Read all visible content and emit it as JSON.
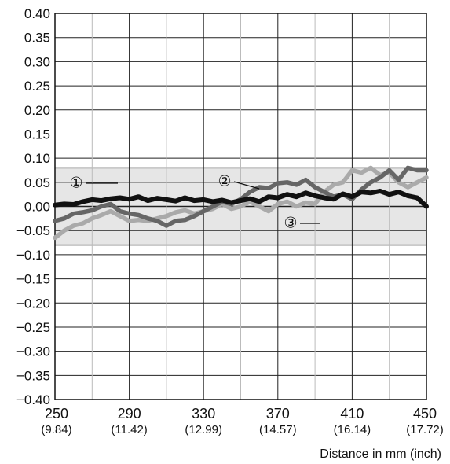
{
  "chart_data": {
    "type": "line",
    "xlabel": "Distance in mm (inch)",
    "ylabel": "",
    "xlim": [
      250,
      450
    ],
    "ylim": [
      -0.4,
      0.4
    ],
    "x_ticks": [
      {
        "value": 250,
        "label": "250",
        "sub": "(9.84)"
      },
      {
        "value": 290,
        "label": "290",
        "sub": "(11.42)"
      },
      {
        "value": 330,
        "label": "330",
        "sub": "(12.99)"
      },
      {
        "value": 370,
        "label": "370",
        "sub": "(14.57)"
      },
      {
        "value": 410,
        "label": "410",
        "sub": "(16.14)"
      },
      {
        "value": 450,
        "label": "450",
        "sub": "(17.72)"
      }
    ],
    "x_minor_ticks": [
      270,
      310,
      350,
      390,
      430
    ],
    "y_ticks": [
      {
        "value": 0.4,
        "label": "0.40"
      },
      {
        "value": 0.35,
        "label": "0.35"
      },
      {
        "value": 0.3,
        "label": "0.30"
      },
      {
        "value": 0.25,
        "label": "0.25"
      },
      {
        "value": 0.2,
        "label": "0.20"
      },
      {
        "value": 0.15,
        "label": "0.15"
      },
      {
        "value": 0.1,
        "label": "0.10"
      },
      {
        "value": 0.05,
        "label": "0.05"
      },
      {
        "value": 0.0,
        "label": "0.00"
      },
      {
        "value": -0.05,
        "label": "−0.05"
      },
      {
        "value": -0.1,
        "label": "−0.10"
      },
      {
        "value": -0.15,
        "label": "−0.15"
      },
      {
        "value": -0.2,
        "label": "−0.20"
      },
      {
        "value": -0.25,
        "label": "−0.25"
      },
      {
        "value": -0.3,
        "label": "−0.30"
      },
      {
        "value": -0.35,
        "label": "−0.35"
      },
      {
        "value": -0.4,
        "label": "−0.40"
      }
    ],
    "tolerance_band": {
      "from": -0.08,
      "to": 0.08,
      "color": "#e6e6e6",
      "edge_color": "#aaaaaa"
    },
    "grid": true,
    "series": [
      {
        "marker": "①",
        "color": "#111111",
        "x": [
          250,
          255,
          260,
          265,
          270,
          275,
          280,
          285,
          290,
          295,
          300,
          305,
          310,
          315,
          320,
          325,
          330,
          335,
          340,
          345,
          350,
          355,
          360,
          365,
          370,
          375,
          380,
          385,
          390,
          395,
          400,
          405,
          410,
          415,
          420,
          425,
          430,
          435,
          440,
          445,
          450
        ],
        "values": [
          0.003,
          0.005,
          0.004,
          0.01,
          0.014,
          0.012,
          0.016,
          0.018,
          0.015,
          0.02,
          0.012,
          0.017,
          0.014,
          0.011,
          0.018,
          0.012,
          0.014,
          0.01,
          0.013,
          0.008,
          0.012,
          0.016,
          0.01,
          0.02,
          0.018,
          0.025,
          0.02,
          0.028,
          0.022,
          0.018,
          0.015,
          0.026,
          0.02,
          0.03,
          0.028,
          0.032,
          0.025,
          0.03,
          0.022,
          0.018,
          0.0
        ]
      },
      {
        "marker": "②",
        "color": "#666666",
        "x": [
          250,
          255,
          260,
          265,
          270,
          275,
          280,
          285,
          290,
          295,
          300,
          305,
          310,
          315,
          320,
          325,
          330,
          335,
          340,
          345,
          350,
          355,
          360,
          365,
          370,
          375,
          380,
          385,
          390,
          395,
          400,
          405,
          410,
          415,
          420,
          425,
          430,
          435,
          440,
          445,
          450
        ],
        "values": [
          -0.03,
          -0.025,
          -0.015,
          -0.012,
          -0.008,
          0.0,
          0.005,
          -0.01,
          -0.015,
          -0.018,
          -0.025,
          -0.03,
          -0.04,
          -0.03,
          -0.028,
          -0.02,
          -0.01,
          0.0,
          0.01,
          0.005,
          0.015,
          0.03,
          0.04,
          0.038,
          0.048,
          0.05,
          0.045,
          0.055,
          0.04,
          0.03,
          0.02,
          0.025,
          0.015,
          0.035,
          0.05,
          0.06,
          0.075,
          0.055,
          0.08,
          0.075,
          0.075
        ]
      },
      {
        "marker": "③",
        "color": "#aaaaaa",
        "x": [
          250,
          255,
          260,
          265,
          270,
          275,
          280,
          285,
          290,
          295,
          300,
          305,
          310,
          315,
          320,
          325,
          330,
          335,
          340,
          345,
          350,
          355,
          360,
          365,
          370,
          375,
          380,
          385,
          390,
          395,
          400,
          405,
          410,
          415,
          420,
          425,
          430,
          435,
          440,
          445,
          450
        ],
        "values": [
          -0.065,
          -0.05,
          -0.04,
          -0.035,
          -0.025,
          -0.018,
          -0.01,
          -0.02,
          -0.03,
          -0.028,
          -0.03,
          -0.025,
          -0.02,
          -0.012,
          -0.008,
          -0.015,
          -0.01,
          -0.005,
          0.005,
          -0.005,
          0.0,
          0.01,
          0.0,
          -0.01,
          0.005,
          0.01,
          0.0,
          0.008,
          0.005,
          0.03,
          0.045,
          0.05,
          0.075,
          0.07,
          0.08,
          0.065,
          0.07,
          0.05,
          0.04,
          0.05,
          0.06
        ]
      }
    ]
  }
}
